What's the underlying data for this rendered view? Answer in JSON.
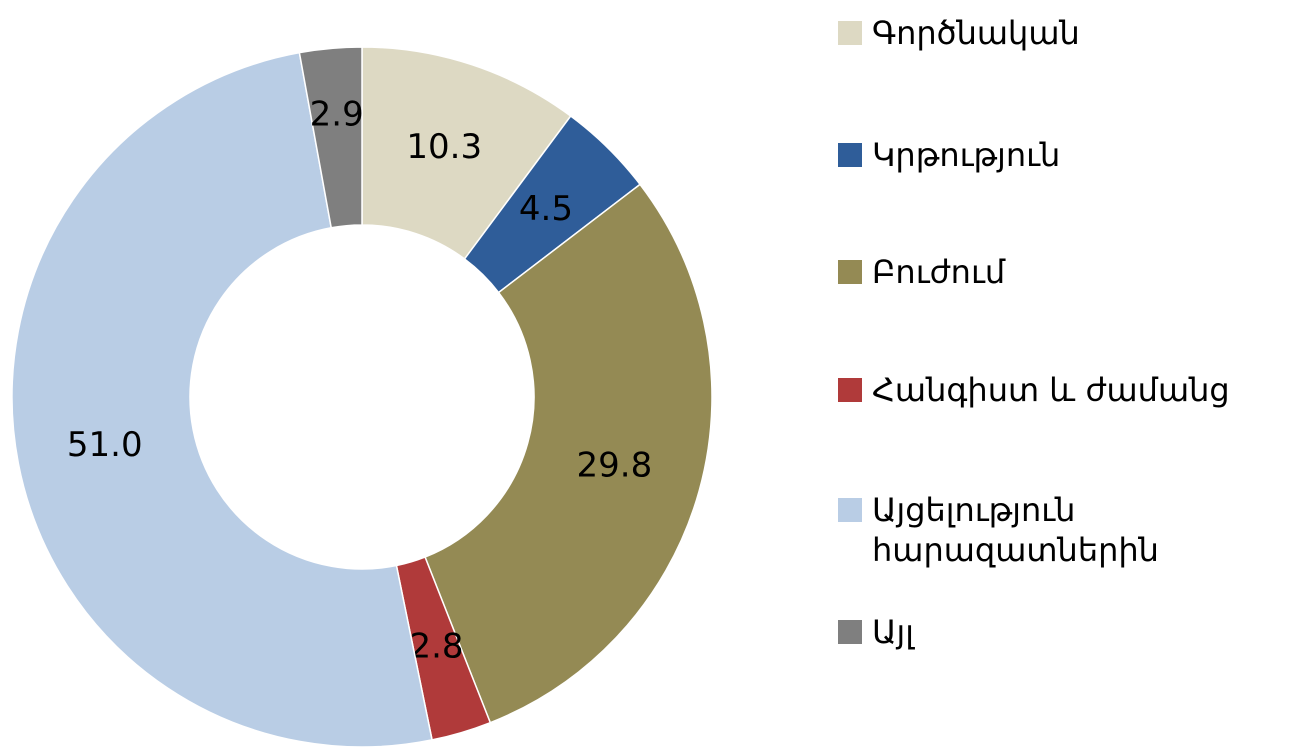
{
  "chart_data": {
    "type": "donut",
    "categories": [
      "Գործնական",
      "Կրթություն",
      "Բուժում",
      "Հանգիստ և ժամանց",
      "Այցելություն հարազատներին",
      "Այլ"
    ],
    "values": [
      10.3,
      4.5,
      29.8,
      2.8,
      51.0,
      2.9
    ],
    "value_labels": [
      "10.3",
      "4.5",
      "29.8",
      "2.8",
      "51.0",
      "2.9"
    ],
    "colors": [
      "#ddd9c3",
      "#2f5d99",
      "#948a54",
      "#b03a3a",
      "#b9cde5",
      "#7f7f7f"
    ],
    "legend": "right"
  }
}
